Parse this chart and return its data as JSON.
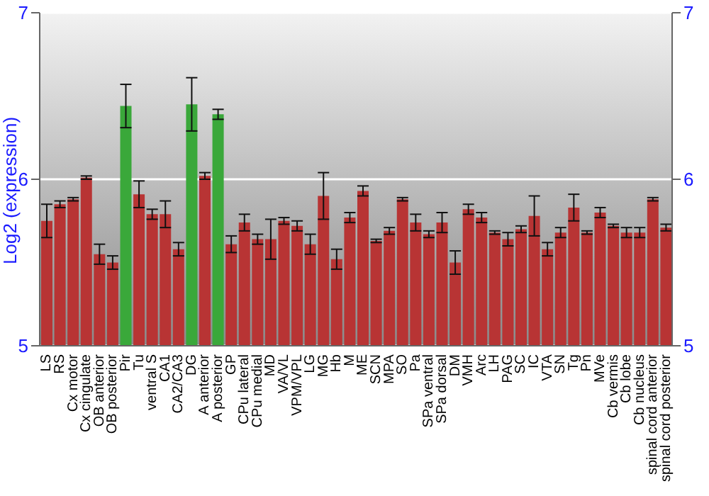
{
  "chart_data": {
    "type": "bar",
    "ylabel": "Log2 (expression)",
    "categories": [
      "LS",
      "RS",
      "Cx motor",
      "Cx cingulate",
      "OB anterior",
      "OB posterior",
      "Pir",
      "Tu",
      "ventral S",
      "CA1",
      "CA2/CA3",
      "DG",
      "A anterior",
      "A posterior",
      "GP",
      "CPu lateral",
      "CPu medial",
      "MD",
      "VA/VL",
      "VPM/VPL",
      "LG",
      "MG",
      "Hb",
      "M",
      "ME",
      "SCN",
      "MPA",
      "SO",
      "Pa",
      "SPa ventral",
      "SPa dorsal",
      "DM",
      "VMH",
      "Arc",
      "LH",
      "PAG",
      "SC",
      "IC",
      "VTA",
      "SN",
      "Tg",
      "Pn",
      "MVe",
      "Cb vermis",
      "Cb lobe",
      "Cb nucleus",
      "spinal cord anterior",
      "spinal cord posterior"
    ],
    "values": [
      5.75,
      5.85,
      5.88,
      6.01,
      5.55,
      5.5,
      6.44,
      5.91,
      5.79,
      5.79,
      5.58,
      6.45,
      6.02,
      6.39,
      5.61,
      5.74,
      5.64,
      5.64,
      5.75,
      5.72,
      5.61,
      5.9,
      5.52,
      5.77,
      5.93,
      5.63,
      5.69,
      5.88,
      5.74,
      5.67,
      5.74,
      5.5,
      5.82,
      5.77,
      5.68,
      5.64,
      5.7,
      5.78,
      5.58,
      5.68,
      5.83,
      5.68,
      5.8,
      5.72,
      5.68,
      5.68,
      5.88,
      5.71
    ],
    "errors": [
      0.1,
      0.02,
      0.01,
      0.01,
      0.06,
      0.04,
      0.13,
      0.08,
      0.03,
      0.08,
      0.04,
      0.16,
      0.02,
      0.03,
      0.05,
      0.05,
      0.03,
      0.12,
      0.02,
      0.03,
      0.06,
      0.14,
      0.06,
      0.03,
      0.03,
      0.01,
      0.02,
      0.01,
      0.05,
      0.02,
      0.06,
      0.07,
      0.03,
      0.03,
      0.01,
      0.04,
      0.02,
      0.12,
      0.04,
      0.03,
      0.08,
      0.01,
      0.03,
      0.01,
      0.03,
      0.03,
      0.01,
      0.02
    ],
    "colors": [
      "#b83434",
      "#b83434",
      "#b83434",
      "#b83434",
      "#b83434",
      "#b83434",
      "#3aa83a",
      "#b83434",
      "#b83434",
      "#b83434",
      "#b83434",
      "#3aa83a",
      "#b83434",
      "#3aa83a",
      "#b83434",
      "#b83434",
      "#b83434",
      "#b83434",
      "#b83434",
      "#b83434",
      "#b83434",
      "#b83434",
      "#b83434",
      "#b83434",
      "#b83434",
      "#b83434",
      "#b83434",
      "#b83434",
      "#b83434",
      "#b83434",
      "#b83434",
      "#b83434",
      "#b83434",
      "#b83434",
      "#b83434",
      "#b83434",
      "#b83434",
      "#b83434",
      "#b83434",
      "#b83434",
      "#b83434",
      "#b83434",
      "#b83434",
      "#b83434",
      "#b83434",
      "#b83434",
      "#b83434",
      "#b83434"
    ],
    "ylim": [
      5,
      7
    ],
    "yticks": [
      5,
      6,
      7
    ],
    "y2lim": [
      5,
      7
    ],
    "y2ticks": [
      5,
      6,
      7
    ],
    "grid": "y"
  }
}
